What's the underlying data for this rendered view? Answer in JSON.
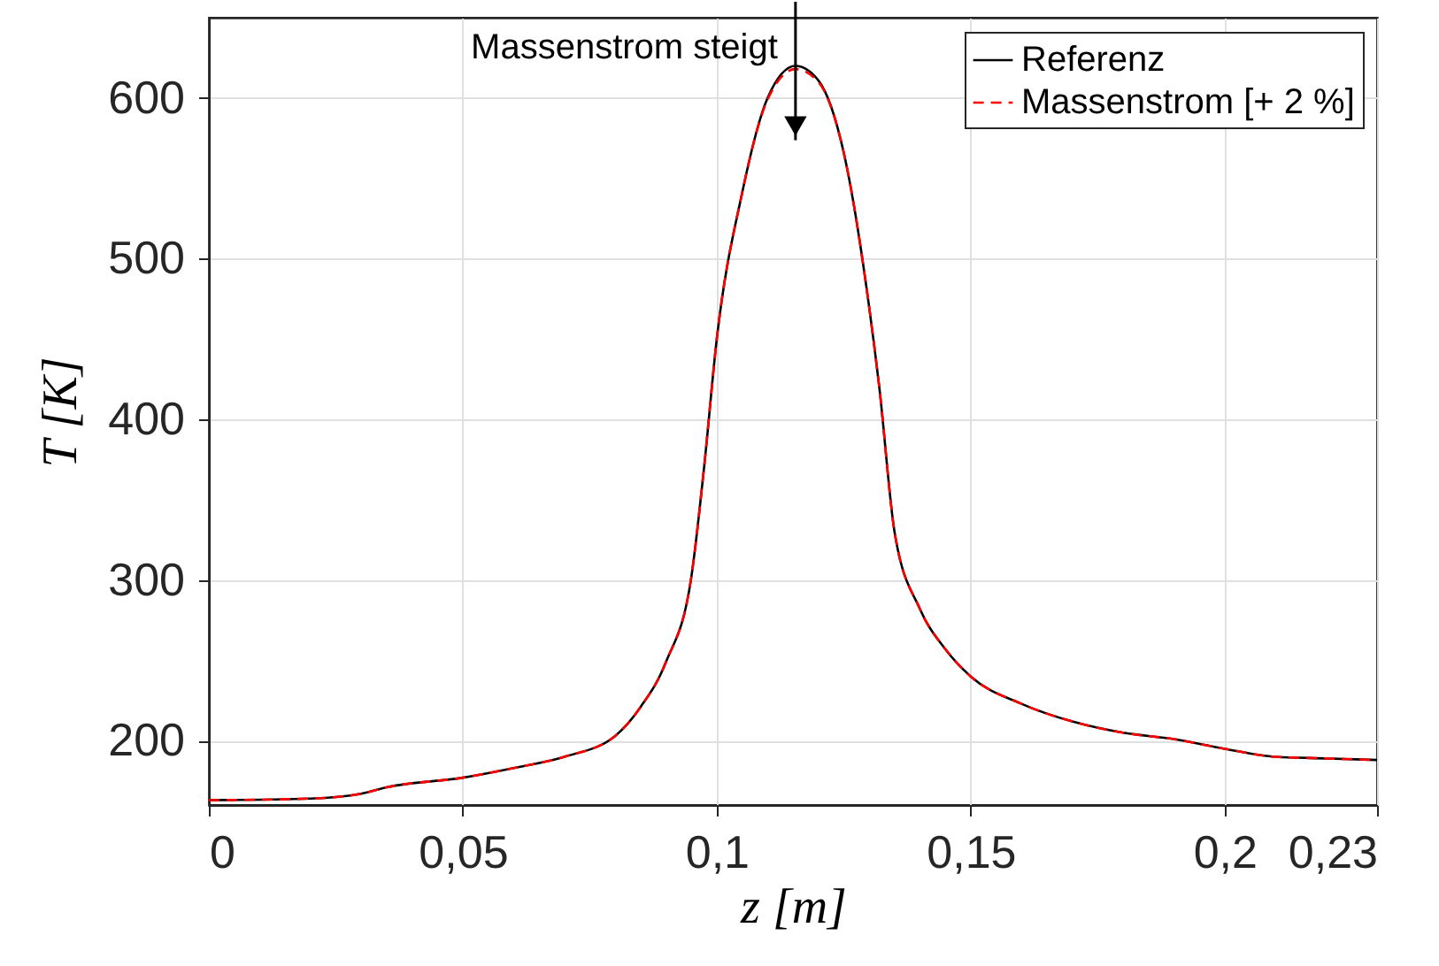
{
  "chart_data": {
    "type": "line",
    "xlabel": "z [m]",
    "ylabel": "T [K]",
    "x": [
      0,
      0.02,
      0.03,
      0.035,
      0.05,
      0.06,
      0.07,
      0.08,
      0.085,
      0.09,
      0.095,
      0.0975,
      0.1,
      0.105,
      0.11,
      0.1155,
      0.12,
      0.125,
      0.13,
      0.132,
      0.135,
      0.14,
      0.145,
      0.15,
      0.16,
      0.17,
      0.18,
      0.19,
      0.2,
      0.21,
      0.22,
      0.23
    ],
    "series": [
      {
        "name": "Referenz",
        "color": "#000000",
        "line_style": "solid",
        "values": [
          163,
          164,
          167,
          171,
          177,
          183,
          190,
          203,
          221,
          249,
          302,
          370,
          450,
          541,
          600,
          620,
          611,
          566,
          470,
          420,
          330,
          282,
          257,
          240,
          223,
          212,
          205,
          201,
          195,
          190,
          189,
          188
        ]
      },
      {
        "name": "Massenstrom [+ 2 %]",
        "color": "#ff0000",
        "line_style": "dashed",
        "values": [
          163,
          164,
          167,
          171,
          177,
          183,
          190,
          203,
          221,
          249,
          302,
          370,
          450,
          541,
          599,
          618,
          610,
          566,
          470,
          420,
          330,
          282,
          257,
          240,
          223,
          212,
          205,
          201,
          195,
          190,
          189,
          188
        ]
      }
    ],
    "xlim": [
      0,
      0.23
    ],
    "ylim": [
      160,
      650
    ],
    "xticks": [
      0,
      {
        "value": 0.05,
        "label": "0,05"
      },
      {
        "value": 0.1,
        "label": "0,1"
      },
      {
        "value": 0.15,
        "label": "0,15"
      },
      {
        "value": 0.2,
        "label": "0,2"
      },
      {
        "value": 0.23,
        "label": "0,23"
      }
    ],
    "yticks": [
      200,
      300,
      400,
      500,
      600
    ],
    "grid": true,
    "legend": "top right",
    "annotations": [
      {
        "text": "Massenstrom steigt",
        "x": 0.1155,
        "y": 620
      }
    ]
  }
}
